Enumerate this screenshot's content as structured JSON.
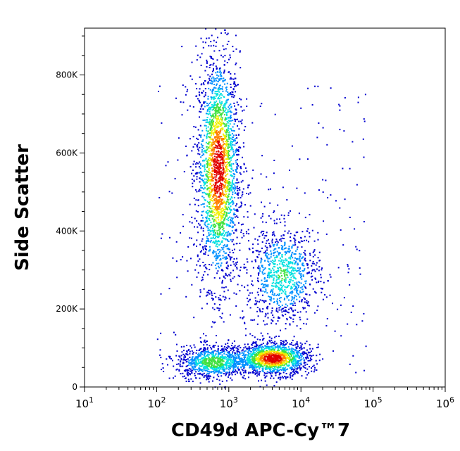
{
  "chart_data": {
    "type": "scatter",
    "subtype": "flow-cytometry-density-plot",
    "xlabel": "CD49d APC-Cy™7",
    "ylabel": "Side Scatter",
    "x_scale": "log",
    "y_scale": "linear",
    "xlim": [
      10,
      1000000
    ],
    "ylim": [
      0,
      920000
    ],
    "x_ticks": [
      {
        "value": 10,
        "base": "10",
        "exp": "1"
      },
      {
        "value": 100,
        "base": "10",
        "exp": "2"
      },
      {
        "value": 1000,
        "base": "10",
        "exp": "3"
      },
      {
        "value": 10000,
        "base": "10",
        "exp": "4"
      },
      {
        "value": 100000,
        "base": "10",
        "exp": "5"
      },
      {
        "value": 1000000,
        "base": "10",
        "exp": "6"
      }
    ],
    "y_ticks": [
      {
        "value": 0,
        "label": "0"
      },
      {
        "value": 200000,
        "label": "200K"
      },
      {
        "value": 400000,
        "label": "400K"
      },
      {
        "value": 600000,
        "label": "600K"
      },
      {
        "value": 800000,
        "label": "800K"
      }
    ],
    "color_scale": [
      "#0000d0",
      "#0090ff",
      "#00e0e0",
      "#40e040",
      "#f0f000",
      "#ff8000",
      "#e00000"
    ],
    "grid": false,
    "legend": "none",
    "populations": [
      {
        "x_center": 700,
        "x_spread_decades": 0.13,
        "y_center": 560000,
        "y_spread": 130000,
        "peak_density": 1.0
      },
      {
        "x_center": 600,
        "x_spread_decades": 0.22,
        "y_center": 65000,
        "y_spread": 18000,
        "peak_density": 0.55
      },
      {
        "x_center": 4000,
        "x_spread_decades": 0.22,
        "y_center": 75000,
        "y_spread": 18000,
        "peak_density": 1.0
      },
      {
        "x_center": 5500,
        "x_spread_decades": 0.22,
        "y_center": 290000,
        "y_spread": 55000,
        "peak_density": 0.45
      }
    ]
  }
}
